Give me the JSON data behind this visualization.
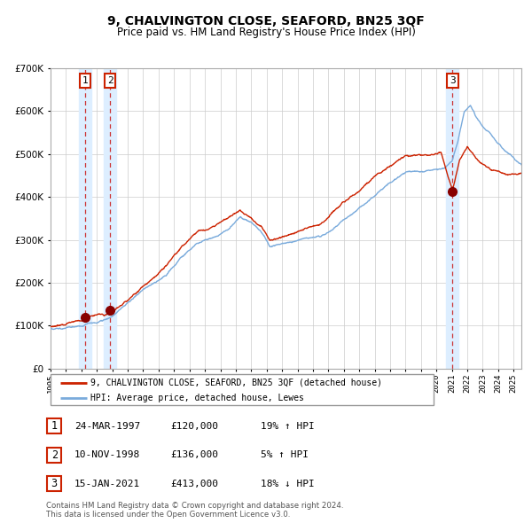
{
  "title": "9, CHALVINGTON CLOSE, SEAFORD, BN25 3QF",
  "subtitle": "Price paid vs. HM Land Registry's House Price Index (HPI)",
  "legend_line1": "9, CHALVINGTON CLOSE, SEAFORD, BN25 3QF (detached house)",
  "legend_line2": "HPI: Average price, detached house, Lewes",
  "transactions": [
    {
      "num": 1,
      "date": "24-MAR-1997",
      "price": 120000,
      "pct": "19%",
      "dir": "↑",
      "x_year": 1997.23
    },
    {
      "num": 2,
      "date": "10-NOV-1998",
      "price": 136000,
      "pct": "5%",
      "dir": "↑",
      "x_year": 1998.86
    },
    {
      "num": 3,
      "date": "15-JAN-2021",
      "price": 413000,
      "pct": "18%",
      "dir": "↓",
      "x_year": 2021.04
    }
  ],
  "hpi_color": "#7aabdc",
  "price_color": "#cc2200",
  "marker_color": "#880000",
  "vline_color": "#cc3333",
  "shade_color": "#ddeeff",
  "grid_color": "#cccccc",
  "bg_color": "#ffffff",
  "ylim": [
    0,
    700000
  ],
  "yticks": [
    0,
    100000,
    200000,
    300000,
    400000,
    500000,
    600000,
    700000
  ],
  "xlim_start": 1995.0,
  "xlim_end": 2025.5,
  "footnote": "Contains HM Land Registry data © Crown copyright and database right 2024.\nThis data is licensed under the Open Government Licence v3.0."
}
